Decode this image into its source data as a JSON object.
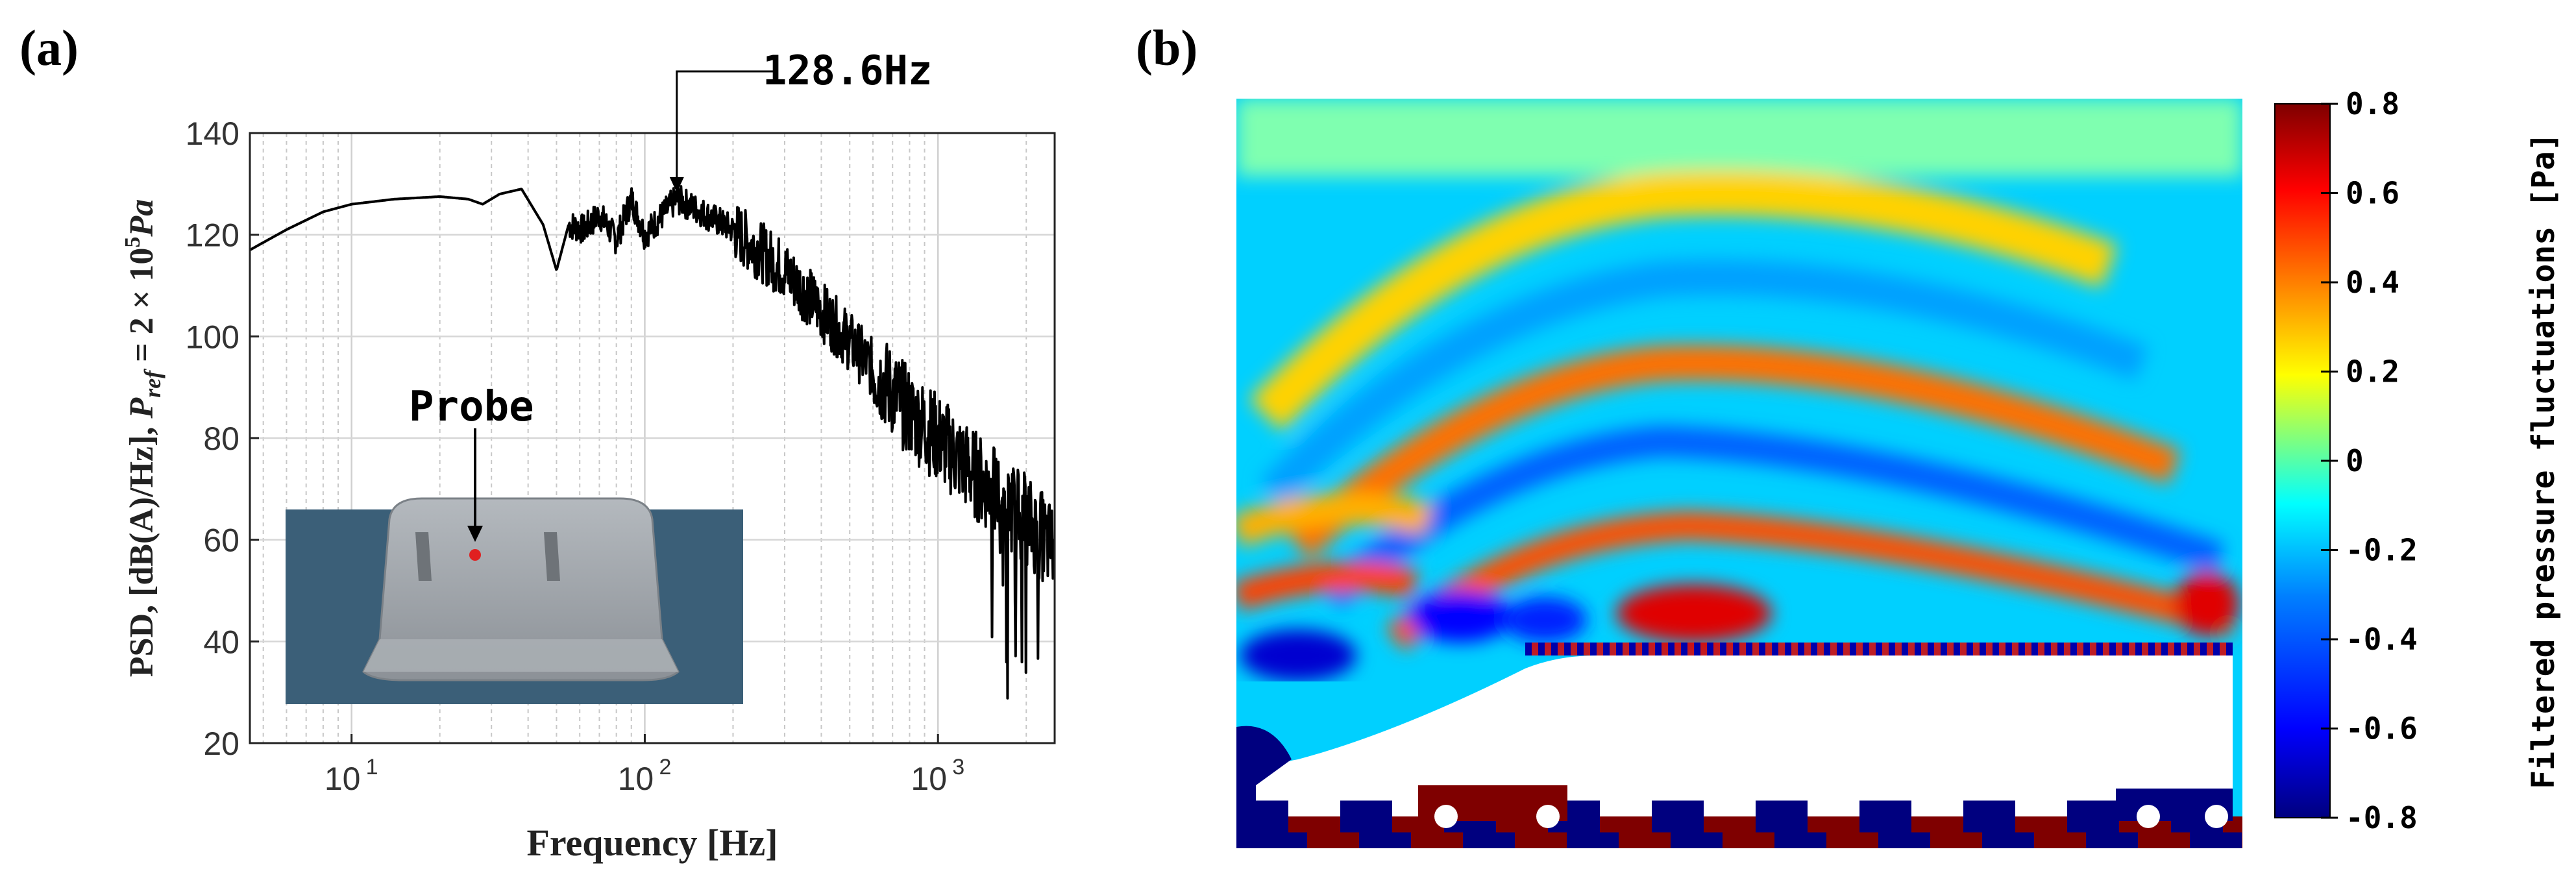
{
  "panel_a": {
    "label": "(a)",
    "annotation": "128.6Hz",
    "inset_label": "Probe",
    "ylabel_prefix": "PSD, [dB(A)/Hz], ",
    "ylabel_p": "P",
    "ylabel_sub": "ref",
    "ylabel_eq": " = 2 × 10",
    "ylabel_exp": "5",
    "ylabel_unit": "Pa",
    "xlabel": "Frequency [Hz]",
    "x_tick_base": "10",
    "x_tick_exps": [
      "1",
      "2",
      "3"
    ],
    "colors": {
      "line": "#000000",
      "inset_ground": "#3b5f78",
      "inset_body": "#9aa0a6",
      "probe": "#e02020"
    }
  },
  "panel_b": {
    "label": "(b)",
    "colorbar_label": "Filtered pressure fluctuations [Pa]",
    "colorbar_ticks": [
      "0.8",
      "0.6",
      "0.4",
      "0.2",
      "0",
      "-0.2",
      "-0.4",
      "-0.6",
      "-0.8"
    ],
    "colorbar_range": [
      -0.8,
      0.8
    ],
    "colormap": [
      "#00007f",
      "#0000ff",
      "#007fff",
      "#00ffff",
      "#7fff7f",
      "#ffff00",
      "#ff7f00",
      "#ff0000",
      "#7f0000"
    ]
  },
  "chart_data": {
    "type": "line",
    "title": "",
    "xlabel": "Frequency [Hz]",
    "ylabel": "PSD, [dB(A)/Hz], P_ref = 2 × 10^5 Pa",
    "x_scale": "log",
    "xlim": [
      4.5,
      2500
    ],
    "ylim": [
      20,
      140
    ],
    "y_ticks": [
      20,
      40,
      60,
      80,
      100,
      120,
      140
    ],
    "grid": true,
    "peak_annotation": {
      "x": 128.6,
      "y": 127,
      "label": "128.6Hz"
    },
    "series": [
      {
        "x": [
          4.5,
          6,
          8,
          10,
          14,
          20,
          25,
          28,
          32,
          38,
          45,
          50,
          55,
          62,
          70,
          80,
          90,
          100,
          128.6,
          150,
          200,
          300,
          500,
          800,
          1000,
          1500,
          2000,
          2500
        ],
        "values": [
          117,
          121,
          124.5,
          126,
          127,
          127.5,
          127,
          126,
          128,
          129,
          122,
          113,
          122,
          121,
          124,
          119,
          127,
          120,
          127,
          125,
          121,
          113,
          99,
          85,
          80,
          70,
          64,
          58
        ]
      }
    ]
  }
}
